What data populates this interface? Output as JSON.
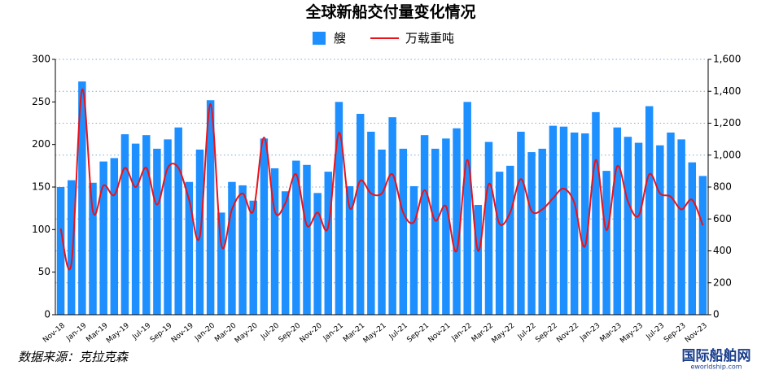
{
  "chart_data": {
    "type": "bar_line",
    "title": "全球新船交付量变化情况",
    "source": "数据来源：克拉克森",
    "watermark": "国际船舶网",
    "watermark_sub": "eworldship.com",
    "categories": [
      "Nov-18",
      null,
      "Jan-19",
      null,
      "Mar-19",
      null,
      "May-19",
      null,
      "Jul-19",
      null,
      "Sep-19",
      null,
      "Nov-19",
      null,
      "Jan-20",
      null,
      "Mar-20",
      null,
      "May-20",
      null,
      "Jul-20",
      null,
      "Sep-20",
      null,
      "Nov-20",
      null,
      "Jan-21",
      null,
      "Mar-21",
      null,
      "May-21",
      null,
      "Jul-21",
      null,
      "Sep-21",
      null,
      "Nov-21",
      null,
      "Jan-22",
      null,
      "Mar-22",
      null,
      "May-22",
      null,
      "Jul-22",
      null,
      "Sep-22",
      null,
      "Nov-22",
      null,
      "Jan-23",
      null,
      "Mar-23",
      null,
      "May-23",
      null,
      "Jul-23",
      null,
      "Sep-23",
      null,
      "Nov-23"
    ],
    "series": [
      {
        "name": "艘",
        "color": "#1e8fff",
        "type": "bar",
        "values": [
          150,
          158,
          274,
          155,
          180,
          184,
          212,
          201,
          211,
          195,
          206,
          220,
          156,
          194,
          252,
          120,
          156,
          152,
          134,
          207,
          172,
          145,
          181,
          176,
          143,
          168,
          250,
          151,
          236,
          215,
          194,
          232,
          195,
          151,
          211,
          195,
          207,
          219,
          250,
          129,
          203,
          168,
          175,
          215,
          191,
          195,
          222,
          221,
          214,
          213,
          238,
          169,
          220,
          209,
          202,
          245,
          199,
          214,
          206,
          179,
          163
        ]
      },
      {
        "name": "万载重吨",
        "color": "#e8131b",
        "type": "line",
        "axis": "y2",
        "values": [
          540,
          320,
          1410,
          650,
          810,
          750,
          920,
          800,
          920,
          690,
          920,
          920,
          720,
          490,
          1320,
          440,
          660,
          760,
          650,
          1110,
          650,
          700,
          880,
          560,
          640,
          550,
          1140,
          670,
          840,
          760,
          760,
          880,
          640,
          580,
          780,
          590,
          680,
          400,
          970,
          400,
          820,
          570,
          640,
          850,
          650,
          660,
          730,
          790,
          700,
          430,
          970,
          530,
          930,
          710,
          620,
          880,
          760,
          740,
          660,
          720,
          560
        ]
      }
    ],
    "ylim": [
      0,
      300
    ],
    "yticks": [
      0,
      50,
      100,
      150,
      200,
      250,
      300
    ],
    "y2lim": [
      0,
      1600
    ],
    "y2ticks": [
      0,
      200,
      400,
      600,
      800,
      {
        "value": 1000,
        "label": "1,000"
      },
      {
        "value": 1200,
        "label": "1,200"
      },
      {
        "value": 1400,
        "label": "1,400"
      },
      {
        "value": 1600,
        "label": "1,600"
      }
    ],
    "grid": true
  }
}
